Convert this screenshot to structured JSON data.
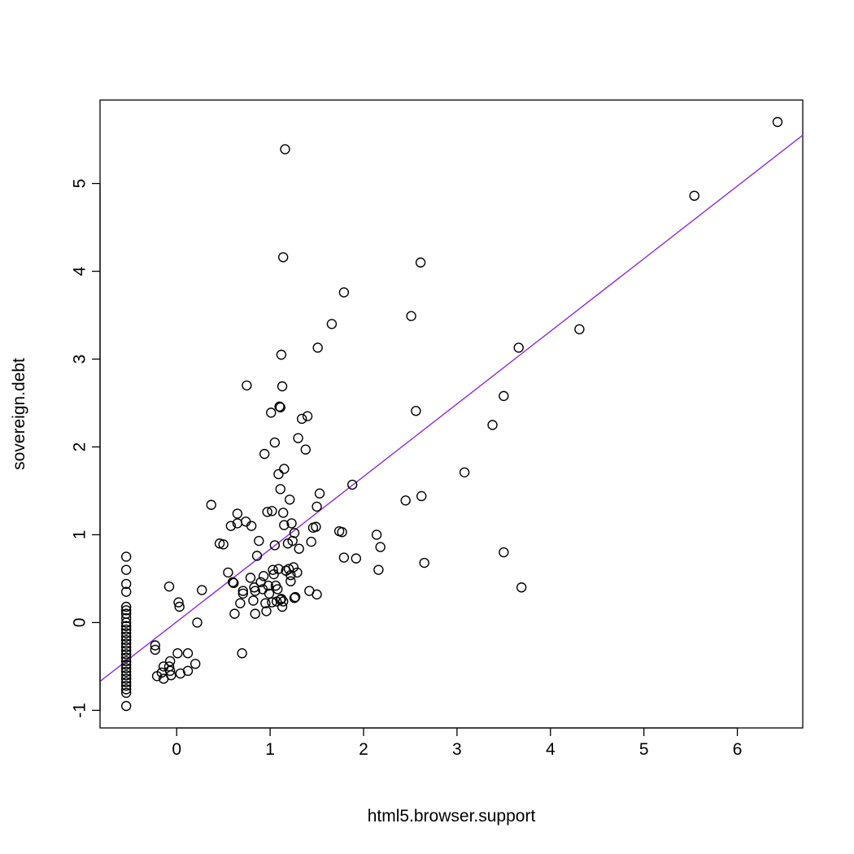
{
  "chart_data": {
    "type": "scatter",
    "title": "",
    "xlabel": "html5.browser.support",
    "ylabel": "sovereign.debt",
    "xlim": [
      -0.82,
      6.7
    ],
    "ylim": [
      -1.2,
      5.95
    ],
    "xticks": [
      0,
      1,
      2,
      3,
      4,
      5,
      6
    ],
    "xtick_labels": [
      "0",
      "1",
      "2",
      "3",
      "4",
      "5",
      "6"
    ],
    "yticks": [
      -1,
      0,
      1,
      2,
      3,
      4,
      5
    ],
    "ytick_labels": [
      "-1",
      "0",
      "1",
      "2",
      "3",
      "4",
      "5"
    ],
    "grid": false,
    "regression_line": {
      "color": "#8A2BE2",
      "x": [
        -0.82,
        6.7
      ],
      "y": [
        -0.67,
        5.55
      ]
    },
    "points": [
      [
        -0.54,
        0.75
      ],
      [
        -0.54,
        0.6
      ],
      [
        -0.54,
        0.44
      ],
      [
        -0.54,
        0.35
      ],
      [
        -0.54,
        0.18
      ],
      [
        -0.54,
        0.14
      ],
      [
        -0.54,
        0.1
      ],
      [
        -0.54,
        0.05
      ],
      [
        -0.54,
        0.0
      ],
      [
        -0.54,
        -0.04
      ],
      [
        -0.54,
        -0.08
      ],
      [
        -0.54,
        -0.12
      ],
      [
        -0.54,
        -0.16
      ],
      [
        -0.54,
        -0.2
      ],
      [
        -0.54,
        -0.24
      ],
      [
        -0.54,
        -0.28
      ],
      [
        -0.54,
        -0.32
      ],
      [
        -0.54,
        -0.36
      ],
      [
        -0.54,
        -0.4
      ],
      [
        -0.54,
        -0.44
      ],
      [
        -0.54,
        -0.48
      ],
      [
        -0.54,
        -0.52
      ],
      [
        -0.54,
        -0.56
      ],
      [
        -0.54,
        -0.6
      ],
      [
        -0.54,
        -0.64
      ],
      [
        -0.54,
        -0.68
      ],
      [
        -0.54,
        -0.72
      ],
      [
        -0.54,
        -0.76
      ],
      [
        -0.54,
        -0.8
      ],
      [
        -0.54,
        -0.95
      ],
      [
        -0.23,
        -0.26
      ],
      [
        -0.23,
        -0.31
      ],
      [
        -0.21,
        -0.61
      ],
      [
        -0.16,
        -0.57
      ],
      [
        -0.14,
        -0.5
      ],
      [
        -0.14,
        -0.64
      ],
      [
        -0.08,
        -0.5
      ],
      [
        -0.07,
        -0.44
      ],
      [
        -0.07,
        -0.55
      ],
      [
        -0.06,
        -0.6
      ],
      [
        -0.08,
        0.41
      ],
      [
        0.02,
        0.23
      ],
      [
        0.03,
        0.18
      ],
      [
        0.01,
        -0.35
      ],
      [
        0.04,
        -0.58
      ],
      [
        0.12,
        -0.35
      ],
      [
        0.12,
        -0.55
      ],
      [
        0.2,
        -0.47
      ],
      [
        0.22,
        0.0
      ],
      [
        0.27,
        0.37
      ],
      [
        0.37,
        1.34
      ],
      [
        0.46,
        0.9
      ],
      [
        0.5,
        0.89
      ],
      [
        0.55,
        0.57
      ],
      [
        0.58,
        1.1
      ],
      [
        0.6,
        0.46
      ],
      [
        0.61,
        0.45
      ],
      [
        0.62,
        0.1
      ],
      [
        0.65,
        1.24
      ],
      [
        0.65,
        1.13
      ],
      [
        0.68,
        0.22
      ],
      [
        0.7,
        -0.35
      ],
      [
        0.71,
        0.36
      ],
      [
        0.71,
        0.33
      ],
      [
        0.74,
        1.15
      ],
      [
        0.75,
        2.7
      ],
      [
        0.79,
        0.51
      ],
      [
        0.8,
        1.1
      ],
      [
        0.82,
        0.25
      ],
      [
        0.83,
        0.4
      ],
      [
        0.84,
        0.36
      ],
      [
        0.84,
        0.1
      ],
      [
        0.86,
        0.76
      ],
      [
        0.88,
        0.93
      ],
      [
        0.9,
        0.46
      ],
      [
        0.92,
        0.38
      ],
      [
        0.93,
        0.53
      ],
      [
        0.94,
        1.92
      ],
      [
        0.95,
        0.22
      ],
      [
        0.96,
        0.13
      ],
      [
        0.97,
        1.26
      ],
      [
        0.98,
        0.42
      ],
      [
        0.99,
        0.33
      ],
      [
        1.01,
        2.39
      ],
      [
        1.02,
        0.23
      ],
      [
        1.02,
        1.27
      ],
      [
        1.03,
        0.6
      ],
      [
        1.04,
        0.55
      ],
      [
        1.05,
        2.05
      ],
      [
        1.05,
        0.88
      ],
      [
        1.06,
        0.42
      ],
      [
        1.07,
        0.24
      ],
      [
        1.08,
        0.38
      ],
      [
        1.09,
        1.69
      ],
      [
        1.09,
        0.61
      ],
      [
        1.1,
        2.46
      ],
      [
        1.11,
        2.45
      ],
      [
        1.11,
        1.52
      ],
      [
        1.11,
        0.26
      ],
      [
        1.12,
        3.05
      ],
      [
        1.12,
        0.27
      ],
      [
        1.13,
        2.69
      ],
      [
        1.13,
        0.18
      ],
      [
        1.14,
        1.25
      ],
      [
        1.14,
        0.24
      ],
      [
        1.14,
        4.16
      ],
      [
        1.15,
        1.75
      ],
      [
        1.15,
        1.11
      ],
      [
        1.16,
        5.39
      ],
      [
        1.17,
        0.59
      ],
      [
        1.19,
        0.9
      ],
      [
        1.2,
        0.61
      ],
      [
        1.21,
        1.4
      ],
      [
        1.22,
        0.54
      ],
      [
        1.22,
        0.47
      ],
      [
        1.23,
        1.13
      ],
      [
        1.24,
        0.93
      ],
      [
        1.25,
        0.63
      ],
      [
        1.26,
        1.02
      ],
      [
        1.26,
        0.28
      ],
      [
        1.27,
        0.29
      ],
      [
        1.29,
        0.57
      ],
      [
        1.3,
        2.1
      ],
      [
        1.31,
        0.84
      ],
      [
        1.34,
        2.32
      ],
      [
        1.38,
        1.97
      ],
      [
        1.4,
        2.35
      ],
      [
        1.42,
        0.36
      ],
      [
        1.44,
        0.92
      ],
      [
        1.46,
        1.08
      ],
      [
        1.49,
        1.09
      ],
      [
        1.5,
        1.32
      ],
      [
        1.5,
        0.32
      ],
      [
        1.51,
        3.13
      ],
      [
        1.53,
        1.47
      ],
      [
        1.66,
        3.4
      ],
      [
        1.74,
        1.04
      ],
      [
        1.77,
        1.03
      ],
      [
        1.79,
        3.76
      ],
      [
        1.79,
        0.74
      ],
      [
        1.88,
        1.57
      ],
      [
        1.92,
        0.73
      ],
      [
        2.14,
        1.0
      ],
      [
        2.16,
        0.6
      ],
      [
        2.18,
        0.86
      ],
      [
        2.45,
        1.39
      ],
      [
        2.51,
        3.49
      ],
      [
        2.56,
        2.41
      ],
      [
        2.61,
        4.1
      ],
      [
        2.62,
        1.44
      ],
      [
        2.65,
        0.68
      ],
      [
        3.08,
        1.71
      ],
      [
        3.38,
        2.25
      ],
      [
        3.5,
        2.58
      ],
      [
        3.5,
        0.8
      ],
      [
        3.66,
        3.13
      ],
      [
        3.69,
        0.4
      ],
      [
        4.31,
        3.34
      ],
      [
        5.54,
        4.86
      ],
      [
        6.43,
        5.7
      ]
    ]
  }
}
